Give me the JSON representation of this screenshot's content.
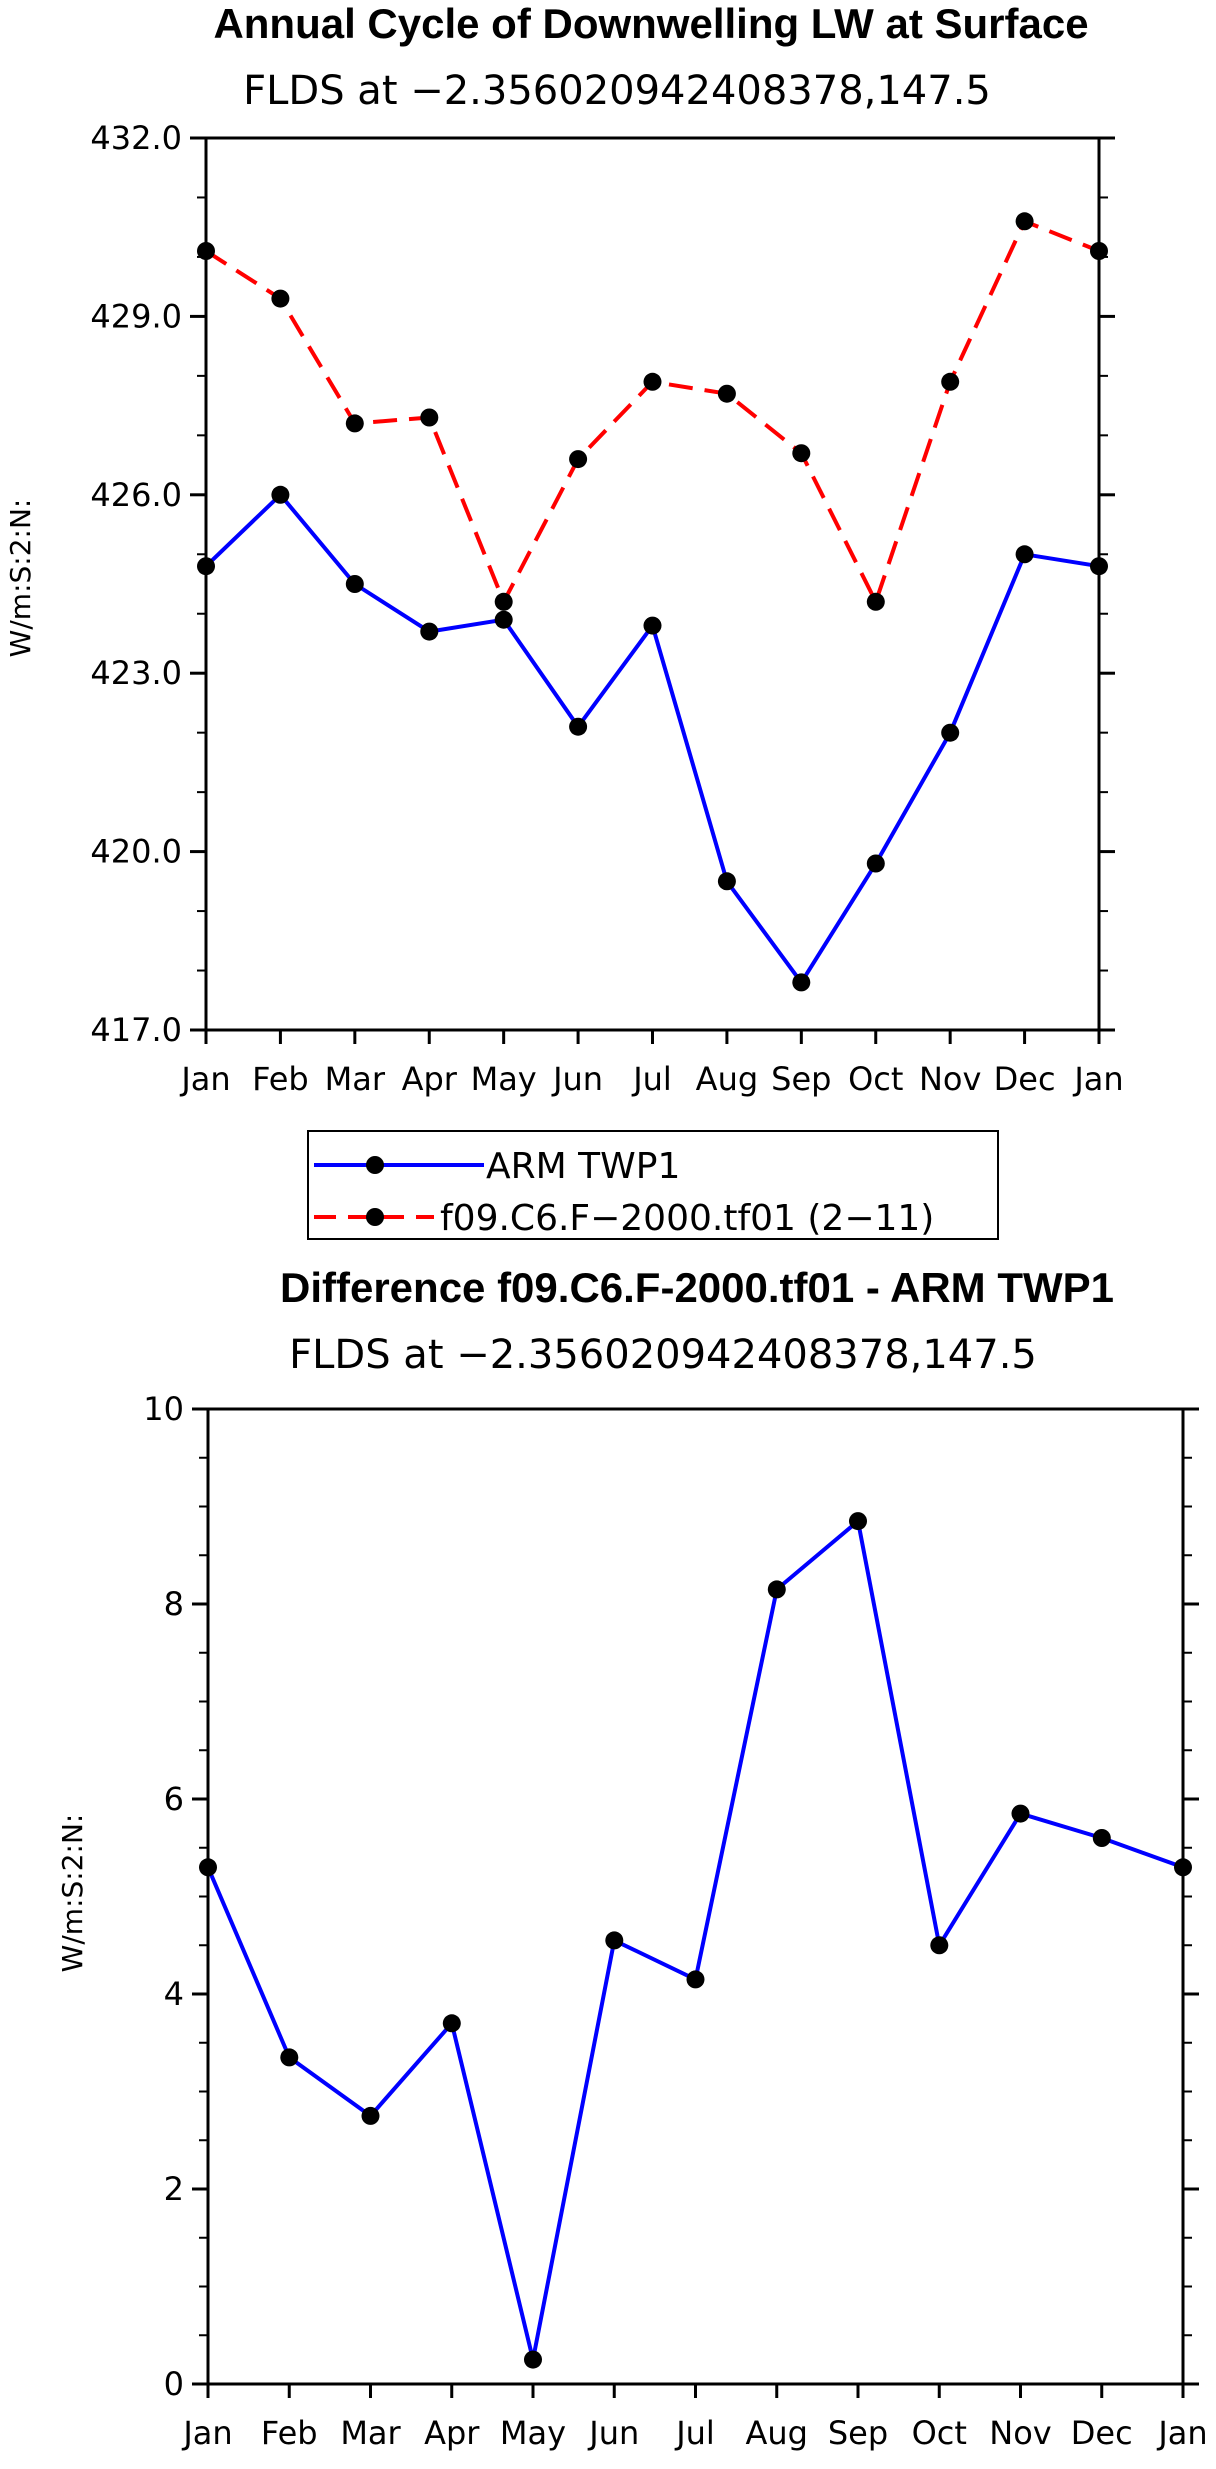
{
  "chart_data": [
    {
      "type": "line",
      "title": "Annual Cycle of Downwelling LW at Surface",
      "subtitle": "FLDS at −2.356020942408378,147.5",
      "xlabel": "",
      "ylabel": "W/m:S:2:N:",
      "categories": [
        "Jan",
        "Feb",
        "Mar",
        "Apr",
        "May",
        "Jun",
        "Jul",
        "Aug",
        "Sep",
        "Oct",
        "Nov",
        "Dec",
        "Jan"
      ],
      "ylim": [
        417.0,
        432.0
      ],
      "yticks": [
        "417.0",
        "420.0",
        "423.0",
        "426.0",
        "429.0",
        "432.0"
      ],
      "series": [
        {
          "name": "ARM TWP1",
          "color": "#0000ff",
          "dash": "solid",
          "values": [
            424.8,
            426.0,
            424.5,
            423.7,
            423.9,
            422.1,
            423.8,
            419.5,
            417.8,
            419.8,
            422.0,
            425.0,
            424.8
          ]
        },
        {
          "name": "f09.C6.F−2000.tf01 (2−11)",
          "color": "#ff0000",
          "dash": "dashed",
          "values": [
            430.1,
            429.3,
            427.2,
            427.3,
            424.2,
            426.6,
            427.9,
            427.7,
            426.7,
            424.2,
            427.9,
            430.6,
            430.1
          ]
        }
      ],
      "legend": "below"
    },
    {
      "type": "line",
      "title": "Difference f09.C6.F-2000.tf01 - ARM TWP1",
      "subtitle": "FLDS at −2.356020942408378,147.5",
      "xlabel": "",
      "ylabel": "W/m:S:2:N:",
      "categories": [
        "Jan",
        "Feb",
        "Mar",
        "Apr",
        "May",
        "Jun",
        "Jul",
        "Aug",
        "Sep",
        "Oct",
        "Nov",
        "Dec",
        "Jan"
      ],
      "ylim": [
        0,
        10
      ],
      "yticks": [
        "0",
        "2",
        "4",
        "6",
        "8",
        "10"
      ],
      "series": [
        {
          "name": "Difference",
          "color": "#0000ff",
          "dash": "solid",
          "values": [
            5.3,
            3.35,
            2.75,
            3.7,
            0.25,
            4.55,
            4.15,
            8.15,
            8.85,
            4.5,
            5.85,
            5.6,
            5.3
          ]
        }
      ]
    }
  ]
}
